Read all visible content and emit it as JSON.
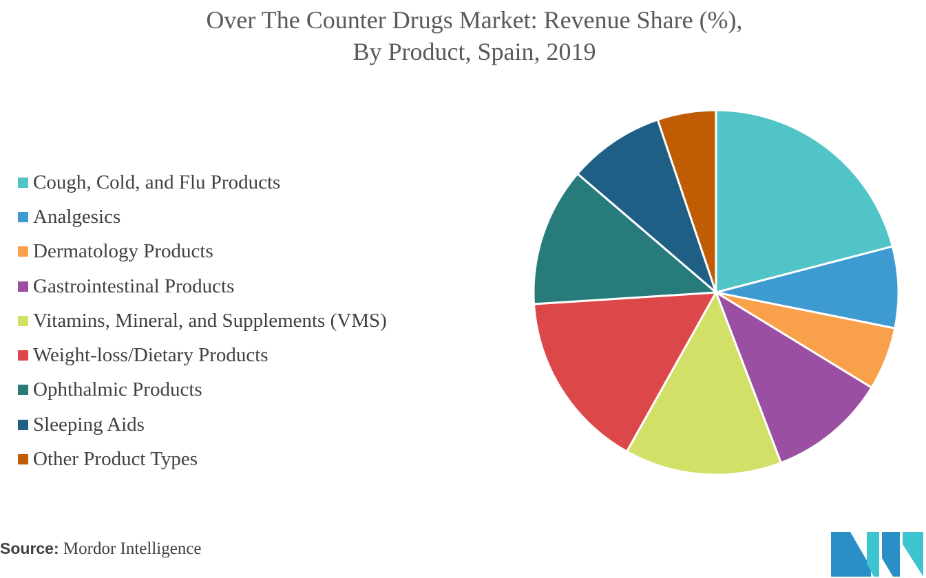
{
  "title": {
    "line1": "Over The Counter Drugs Market: Revenue Share (%),",
    "line2": "By Product, Spain, 2019"
  },
  "source": {
    "label": "Source:",
    "text": "Mordor Intelligence"
  },
  "chart_data": {
    "type": "pie",
    "title": "Over The Counter Drugs Market: Revenue Share (%), By Product, Spain, 2019",
    "legend_position": "left",
    "start_angle": "12 o'clock",
    "direction": "clockwise",
    "slices": [
      {
        "label": "Cough, Cold, and Flu Products",
        "value": 20.6,
        "color": "#51c4c7"
      },
      {
        "label": "Analgesics",
        "value": 7.1,
        "color": "#3e9bd1"
      },
      {
        "label": "Dermatology Products",
        "value": 5.5,
        "color": "#f8a04a"
      },
      {
        "label": "Gastrointestinal Products",
        "value": 10.3,
        "color": "#9b4fa2"
      },
      {
        "label": "Vitamins, Mineral, and Supplements (VMS)",
        "value": 13.7,
        "color": "#d2e068"
      },
      {
        "label": "Weight-loss/Dietary Products",
        "value": 15.6,
        "color": "#dc4749"
      },
      {
        "label": "Ophthalmic Products",
        "value": 12.1,
        "color": "#277c7b"
      },
      {
        "label": "Sleeping Aids",
        "value": 8.4,
        "color": "#1f5f85"
      },
      {
        "label": "Other Product Types",
        "value": 5.1,
        "color": "#bf5c04"
      }
    ]
  }
}
